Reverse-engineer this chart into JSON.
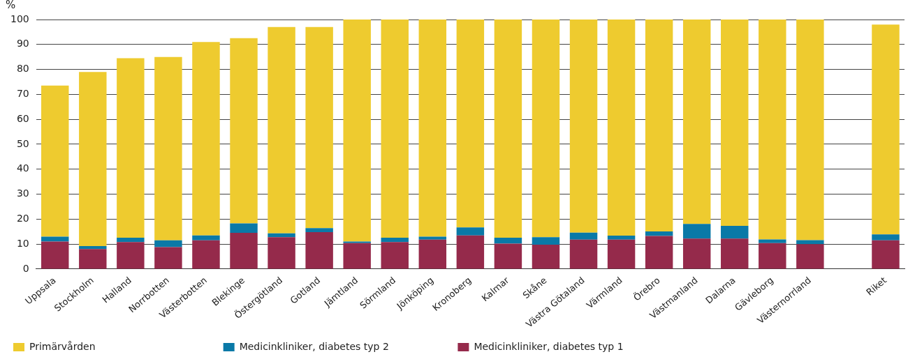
{
  "chart_data": {
    "type": "bar",
    "stacked": true,
    "ylabel": "%",
    "categories": [
      "Uppsala",
      "Stockholm",
      "Halland",
      "Norrbotten",
      "Västerbotten",
      "Blekinge",
      "Östergötland",
      "Gotland",
      "Jämtland",
      "Sörmland",
      "Jönköping",
      "Kronoberg",
      "Kalmar",
      "Skåne",
      "Västra Götaland",
      "Värmland",
      "Örebro",
      "Västmanland",
      "Dalarna",
      "Gävleborg",
      "Västernorrland",
      null,
      "Riket"
    ],
    "series": [
      {
        "name": "Medicinkliniker, diabetes typ 1",
        "color": "#952a4b",
        "values": [
          11,
          8,
          10.8,
          8.8,
          11.5,
          14.5,
          12.8,
          14.8,
          10.4,
          10.8,
          11.8,
          13.5,
          10.2,
          9.8,
          11.8,
          11.8,
          13.3,
          12.2,
          12.2,
          10.4,
          10,
          null,
          11.5
        ]
      },
      {
        "name": "Medicinkliniker, diabetes typ 2",
        "color": "#0a79a7",
        "values": [
          2,
          1.2,
          1.8,
          2.7,
          2,
          3.8,
          1.5,
          1.6,
          0.6,
          1.8,
          1.2,
          3.2,
          2.4,
          3,
          2.8,
          1.6,
          1.8,
          5.9,
          5.1,
          1.5,
          1.6,
          null,
          2.4
        ]
      },
      {
        "name": "Primärvården",
        "color": "#eecb2f",
        "values": [
          60.5,
          69.8,
          71.9,
          73.5,
          77.5,
          74.2,
          82.7,
          80.6,
          89,
          87.4,
          87,
          83.3,
          87.4,
          87.2,
          85.4,
          86.6,
          84.9,
          81.9,
          82.7,
          88.1,
          88.4,
          null,
          84.1
        ]
      }
    ],
    "ylim": [
      0,
      100
    ],
    "yticks": [
      0,
      10,
      20,
      30,
      40,
      50,
      60,
      70,
      80,
      90,
      100
    ],
    "grid": "y",
    "legend": "bottom"
  }
}
